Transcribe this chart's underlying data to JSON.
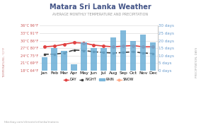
{
  "title": "Matara Sri Lanka Weather",
  "subtitle": "AVERAGE MONTHLY TEMPERATURE AND PRECIPITATION",
  "months": [
    "Jan",
    "Feb",
    "Mar",
    "Apr",
    "May",
    "Jun",
    "Jul",
    "Aug",
    "Sep",
    "Oct",
    "Nov",
    "Dec"
  ],
  "day_temps": [
    27.5,
    27.8,
    28.5,
    29.2,
    29.0,
    28.2,
    27.8,
    27.5,
    27.8,
    28.0,
    27.5,
    27.5
  ],
  "night_temps": [
    24.5,
    24.5,
    25.0,
    26.2,
    26.0,
    25.5,
    25.2,
    25.0,
    25.2,
    25.5,
    25.0,
    24.8
  ],
  "rain_days": [
    9,
    15,
    13,
    4,
    19,
    15,
    15,
    22,
    27,
    20,
    24,
    19
  ],
  "snow_days": [
    0,
    0,
    0,
    0,
    0,
    0,
    0,
    0,
    0,
    0,
    0,
    0
  ],
  "bar_color": "#6baed6",
  "day_color": "#e04040",
  "night_color": "#404040",
  "snow_color": "#ffccaa",
  "temp_min": 18,
  "temp_max": 36,
  "precip_min": 0,
  "precip_max": 30,
  "title_color": "#444488",
  "subtitle_color": "#888888",
  "left_yticks_c": [
    18,
    21,
    24,
    27,
    30,
    33,
    36
  ],
  "left_yticks_f": [
    64,
    69,
    75,
    80,
    86,
    91,
    96
  ],
  "right_yticks": [
    0,
    5,
    10,
    15,
    20,
    25,
    30
  ],
  "footer": "hikerbay.com/climate/srilanka/matara",
  "legend_labels": [
    "DAY",
    "NIGHT",
    "RAIN",
    "SNOW"
  ]
}
